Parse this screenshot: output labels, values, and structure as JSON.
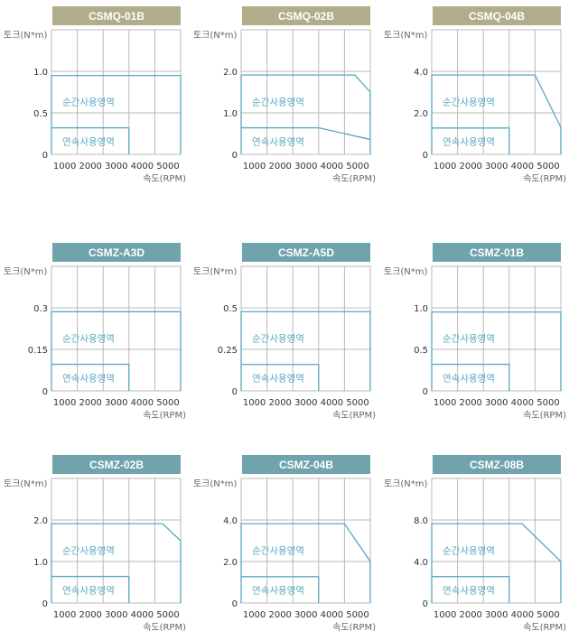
{
  "colors": {
    "grid": "#b9b9b9",
    "curve": "#5aa8bf",
    "title_olive": "#b0ae8a",
    "title_teal": "#6fa4ac",
    "label": "#333333"
  },
  "labels": {
    "y_unit": "토크(N*m)",
    "x_unit": "속도(RPM)",
    "peak_region": "순간사용영역",
    "continuous_region": "연속사용영역"
  },
  "chart_data": [
    {
      "type": "area",
      "title": "CSMQ-01B",
      "title_color": "#b0ae8a",
      "xlim": [
        0,
        5000
      ],
      "ylim": [
        0,
        1.0
      ],
      "x_ticks": [
        "1000",
        "2000",
        "3000",
        "4000",
        "5000"
      ],
      "y_ticks": [
        {
          "v": 1.0,
          "label": "1.0"
        },
        {
          "v": 0.5,
          "label": "0.5"
        },
        {
          "v": 0,
          "label": "0"
        }
      ],
      "peak_curve": {
        "x": [
          0,
          5000
        ],
        "y": [
          0.95,
          0.95
        ]
      },
      "continuous_curve": {
        "x": [
          0,
          3000
        ],
        "y": [
          0.32,
          0.32
        ]
      }
    },
    {
      "type": "area",
      "title": "CSMQ-02B",
      "title_color": "#b0ae8a",
      "xlim": [
        0,
        5000
      ],
      "ylim": [
        0,
        2.0
      ],
      "x_ticks": [
        "1000",
        "2000",
        "3000",
        "4000",
        "5000"
      ],
      "y_ticks": [
        {
          "v": 2.0,
          "label": "2.0"
        },
        {
          "v": 1.0,
          "label": "1.0"
        },
        {
          "v": 0,
          "label": "0"
        }
      ],
      "peak_curve": {
        "x": [
          0,
          4400,
          5000
        ],
        "y": [
          1.91,
          1.91,
          1.5
        ]
      },
      "continuous_curve": {
        "x": [
          0,
          3000,
          5000
        ],
        "y": [
          0.64,
          0.64,
          0.36
        ]
      }
    },
    {
      "type": "area",
      "title": "CSMQ-04B",
      "title_color": "#b0ae8a",
      "xlim": [
        0,
        5000
      ],
      "ylim": [
        0,
        4.0
      ],
      "x_ticks": [
        "1000",
        "2000",
        "3000",
        "4000",
        "5000"
      ],
      "y_ticks": [
        {
          "v": 4.0,
          "label": "4.0"
        },
        {
          "v": 2.0,
          "label": "2.0"
        },
        {
          "v": 0,
          "label": "0"
        }
      ],
      "peak_curve": {
        "x": [
          0,
          4000,
          5000
        ],
        "y": [
          3.82,
          3.82,
          1.3
        ]
      },
      "continuous_curve": {
        "x": [
          0,
          3000
        ],
        "y": [
          1.27,
          1.27
        ]
      }
    },
    {
      "type": "area",
      "title": "CSMZ-A3D",
      "title_color": "#6fa4ac",
      "xlim": [
        0,
        5000
      ],
      "ylim": [
        0,
        0.3
      ],
      "x_ticks": [
        "1000",
        "2000",
        "3000",
        "4000",
        "5000"
      ],
      "y_ticks": [
        {
          "v": 0.3,
          "label": "0.3"
        },
        {
          "v": 0.15,
          "label": "0.15"
        },
        {
          "v": 0,
          "label": "0"
        }
      ],
      "peak_curve": {
        "x": [
          0,
          5000
        ],
        "y": [
          0.286,
          0.286
        ]
      },
      "continuous_curve": {
        "x": [
          0,
          3000
        ],
        "y": [
          0.096,
          0.096
        ]
      }
    },
    {
      "type": "area",
      "title": "CSMZ-A5D",
      "title_color": "#6fa4ac",
      "xlim": [
        0,
        5000
      ],
      "ylim": [
        0,
        0.5
      ],
      "x_ticks": [
        "1000",
        "2000",
        "3000",
        "4000",
        "5000"
      ],
      "y_ticks": [
        {
          "v": 0.5,
          "label": "0.5"
        },
        {
          "v": 0.25,
          "label": "0.25"
        },
        {
          "v": 0,
          "label": "0"
        }
      ],
      "peak_curve": {
        "x": [
          0,
          5000
        ],
        "y": [
          0.477,
          0.477
        ]
      },
      "continuous_curve": {
        "x": [
          0,
          3000
        ],
        "y": [
          0.159,
          0.159
        ]
      }
    },
    {
      "type": "area",
      "title": "CSMZ-01B",
      "title_color": "#6fa4ac",
      "xlim": [
        0,
        5000
      ],
      "ylim": [
        0,
        1.0
      ],
      "x_ticks": [
        "1000",
        "2000",
        "3000",
        "4000",
        "5000"
      ],
      "y_ticks": [
        {
          "v": 1.0,
          "label": "1.0"
        },
        {
          "v": 0.5,
          "label": "0.5"
        },
        {
          "v": 0,
          "label": "0"
        }
      ],
      "peak_curve": {
        "x": [
          0,
          5000
        ],
        "y": [
          0.95,
          0.95
        ]
      },
      "continuous_curve": {
        "x": [
          0,
          3000
        ],
        "y": [
          0.32,
          0.32
        ]
      }
    },
    {
      "type": "area",
      "title": "CSMZ-02B",
      "title_color": "#6fa4ac",
      "xlim": [
        0,
        5000
      ],
      "ylim": [
        0,
        2.0
      ],
      "x_ticks": [
        "1000",
        "2000",
        "3000",
        "4000",
        "5000"
      ],
      "y_ticks": [
        {
          "v": 2.0,
          "label": "2.0"
        },
        {
          "v": 1.0,
          "label": "1.0"
        },
        {
          "v": 0,
          "label": "0"
        }
      ],
      "peak_curve": {
        "x": [
          0,
          4300,
          5000
        ],
        "y": [
          1.91,
          1.91,
          1.5
        ]
      },
      "continuous_curve": {
        "x": [
          0,
          3000
        ],
        "y": [
          0.64,
          0.64
        ]
      }
    },
    {
      "type": "area",
      "title": "CSMZ-04B",
      "title_color": "#6fa4ac",
      "xlim": [
        0,
        5000
      ],
      "ylim": [
        0,
        4.0
      ],
      "x_ticks": [
        "1000",
        "2000",
        "3000",
        "4000",
        "5000"
      ],
      "y_ticks": [
        {
          "v": 4.0,
          "label": "4.0"
        },
        {
          "v": 2.0,
          "label": "2.0"
        },
        {
          "v": 0,
          "label": "0"
        }
      ],
      "peak_curve": {
        "x": [
          0,
          4000,
          5000
        ],
        "y": [
          3.82,
          3.82,
          2.0
        ]
      },
      "continuous_curve": {
        "x": [
          0,
          3000
        ],
        "y": [
          1.27,
          1.27
        ]
      }
    },
    {
      "type": "area",
      "title": "CSMZ-08B",
      "title_color": "#6fa4ac",
      "xlim": [
        0,
        5000
      ],
      "ylim": [
        0,
        8.0
      ],
      "x_ticks": [
        "1000",
        "2000",
        "3000",
        "4000",
        "5000"
      ],
      "y_ticks": [
        {
          "v": 8.0,
          "label": "8.0"
        },
        {
          "v": 4.0,
          "label": "4.0"
        },
        {
          "v": 0,
          "label": "0"
        }
      ],
      "peak_curve": {
        "x": [
          0,
          3500,
          5000
        ],
        "y": [
          7.64,
          7.64,
          4.0
        ]
      },
      "continuous_curve": {
        "x": [
          0,
          3000
        ],
        "y": [
          2.55,
          2.55
        ]
      }
    }
  ]
}
